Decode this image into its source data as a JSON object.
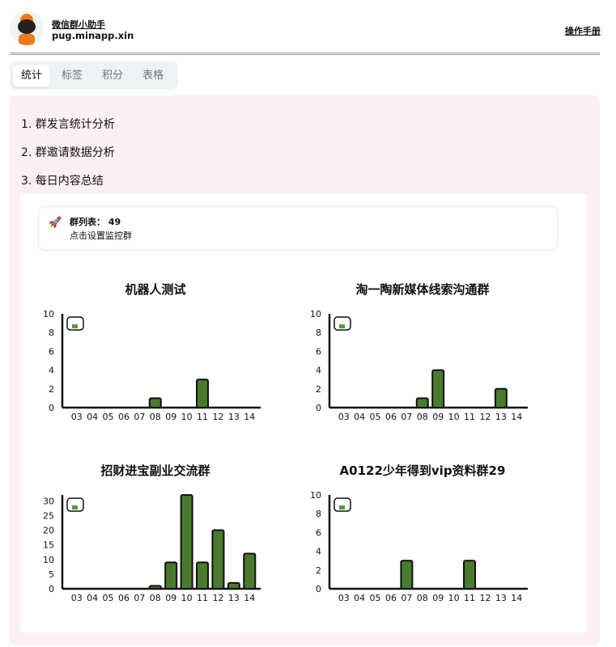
{
  "header": {
    "app_name": "微信群小助手",
    "domain": "pug.minapp.xin",
    "manual_link": "操作手册"
  },
  "tabs": [
    {
      "label": "统计",
      "active": true
    },
    {
      "label": "标签"
    },
    {
      "label": "积分"
    },
    {
      "label": "表格"
    }
  ],
  "menu": [
    "1. 群发言统计分析",
    "2. 群邀请数据分析",
    "3. 每日内容总结"
  ],
  "card": {
    "group_list_label": "群列表：",
    "group_count": "49",
    "setup_link": "点击设置监控群",
    "icon": "rocket-icon"
  },
  "colors": {
    "bar": "#4a7a2e",
    "panel": "#fdf0f5"
  },
  "chart_data": [
    {
      "type": "bar",
      "title": "机器人测试",
      "categories": [
        "03",
        "04",
        "05",
        "06",
        "07",
        "08",
        "09",
        "10",
        "11",
        "12",
        "13",
        "14"
      ],
      "values": [
        0,
        0,
        0,
        0,
        0,
        1,
        0,
        0,
        3,
        0,
        0,
        0
      ],
      "ylim": [
        0,
        10
      ],
      "yticks": [
        0,
        2,
        4,
        6,
        8,
        10
      ],
      "legend": "top-left"
    },
    {
      "type": "bar",
      "title": "淘一陶新媒体线索沟通群",
      "categories": [
        "03",
        "04",
        "05",
        "06",
        "07",
        "08",
        "09",
        "10",
        "11",
        "12",
        "13",
        "14"
      ],
      "values": [
        0,
        0,
        0,
        0,
        0,
        1,
        4,
        0,
        0,
        0,
        2,
        0
      ],
      "ylim": [
        0,
        10
      ],
      "yticks": [
        0,
        2,
        4,
        6,
        8,
        10
      ],
      "legend": "top-left"
    },
    {
      "type": "bar",
      "title": "招财进宝副业交流群",
      "categories": [
        "03",
        "04",
        "05",
        "06",
        "07",
        "08",
        "09",
        "10",
        "11",
        "12",
        "13",
        "14"
      ],
      "values": [
        0,
        0,
        0,
        0,
        0,
        1,
        9,
        32,
        9,
        20,
        2,
        12
      ],
      "ylim": [
        0,
        32
      ],
      "yticks": [
        0,
        5,
        10,
        15,
        20,
        25,
        30
      ],
      "legend": "top-left"
    },
    {
      "type": "bar",
      "title": "A0122少年得到vip资料群29",
      "categories": [
        "03",
        "04",
        "05",
        "06",
        "07",
        "08",
        "09",
        "10",
        "11",
        "12",
        "13",
        "14"
      ],
      "values": [
        0,
        0,
        0,
        0,
        3,
        0,
        0,
        0,
        3,
        0,
        0,
        0
      ],
      "ylim": [
        0,
        10
      ],
      "yticks": [
        0,
        2,
        4,
        6,
        8,
        10
      ],
      "legend": "top-left"
    }
  ]
}
